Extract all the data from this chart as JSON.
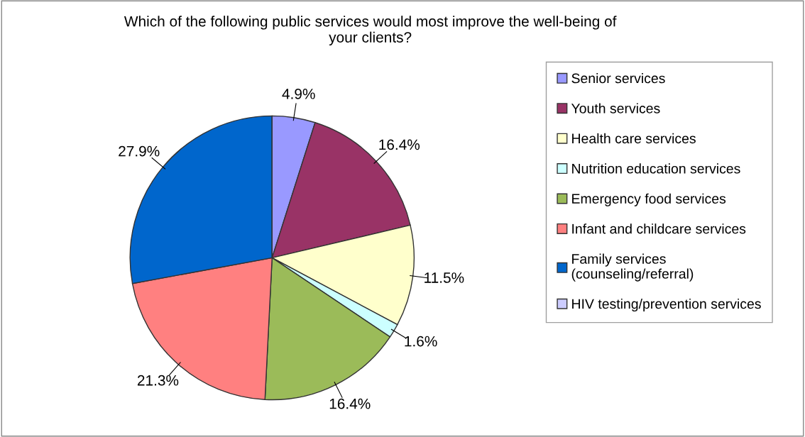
{
  "chart_data": {
    "type": "pie",
    "title": "Which of the following public services would most improve the well-being of\nyour clients?",
    "categories": [
      "Senior services",
      "Youth services",
      "Health care services",
      "Nutrition education services",
      "Emergency food services",
      "Infant and childcare services",
      "Family services\n(counseling/referral)",
      "HIV testing/prevention services"
    ],
    "values": [
      4.9,
      16.4,
      11.5,
      1.6,
      16.4,
      21.3,
      27.9,
      0
    ],
    "value_labels": [
      "4.9%",
      "16.4%",
      "11.5%",
      "1.6%",
      "16.4%",
      "21.3%",
      "27.9%",
      null
    ],
    "colors": [
      "#9999ff",
      "#993366",
      "#ffffcc",
      "#ccffff",
      "#9bbb59",
      "#ff8080",
      "#0066cc",
      "#ccccff"
    ],
    "legend": "right"
  }
}
